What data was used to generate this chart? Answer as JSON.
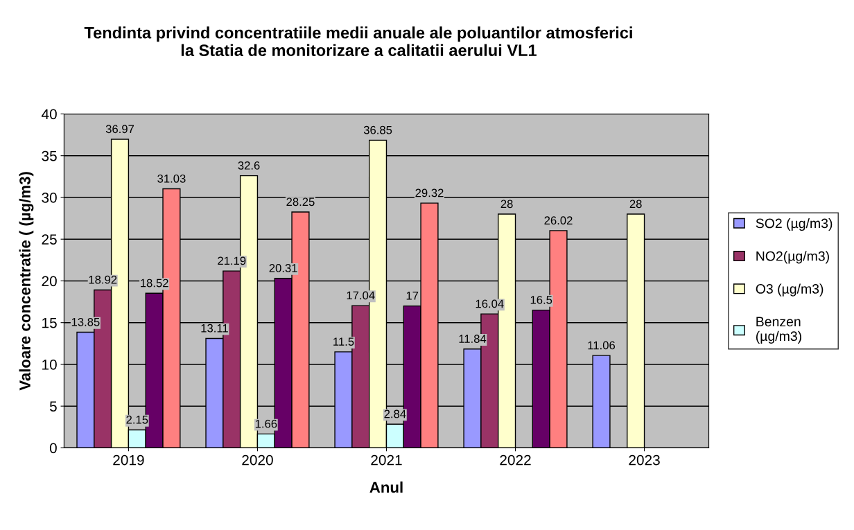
{
  "chart_data": {
    "type": "bar",
    "title": "Tendinta privind concentratiile medii anuale ale poluantilor atmosferici\nla Statia de monitorizare a calitatii aerului VL1",
    "xlabel": "Anul",
    "ylabel": "Valoare concentratie ( (µg/m3)",
    "categories": [
      "2019",
      "2020",
      "2021",
      "2022",
      "2023"
    ],
    "series": [
      {
        "name": "SO2 (µg/m3)",
        "color": "#9999ff",
        "values": [
          13.85,
          13.11,
          11.5,
          11.84,
          11.06
        ]
      },
      {
        "name": "NO2(µg/m3)",
        "color": "#993366",
        "values": [
          18.92,
          21.19,
          17.04,
          16.04,
          null
        ]
      },
      {
        "name": "O3 (µg/m3)",
        "color": "#ffffcc",
        "values": [
          36.97,
          32.6,
          36.85,
          28,
          28
        ]
      },
      {
        "name": "Benzen\n(µg/m3)",
        "color": "#ccffff",
        "values": [
          2.15,
          1.66,
          2.84,
          null,
          null
        ]
      },
      {
        "color": "#660066",
        "values": [
          18.52,
          20.31,
          17,
          16.5,
          null
        ]
      },
      {
        "color": "#ff8080",
        "values": [
          31.03,
          28.25,
          29.32,
          26.02,
          null
        ]
      }
    ],
    "ylim": [
      0,
      40
    ],
    "yticks": [
      0,
      5,
      10,
      15,
      20,
      25,
      30,
      35,
      40
    ],
    "grid": "y",
    "legend": "right",
    "data_labels": true
  }
}
